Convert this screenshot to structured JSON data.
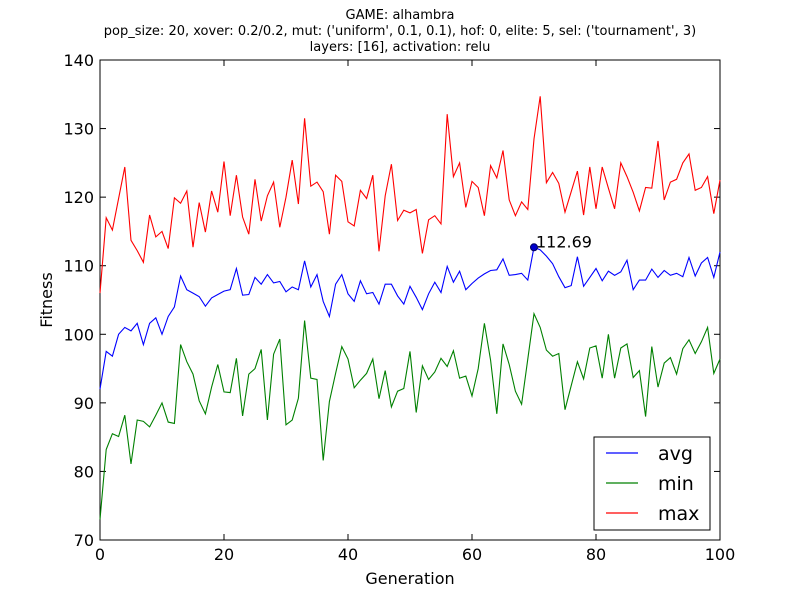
{
  "title_lines": [
    "GAME: alhambra",
    "pop_size: 20, xover: 0.2/0.2, mut: ('uniform', 0.1, 0.1), hof: 0, elite: 5, sel: ('tournament', 3)",
    "layers: [16], activation: relu"
  ],
  "chart_data": {
    "type": "line",
    "title": "GAME: alhambra\npop_size: 20, xover: 0.2/0.2, mut: ('uniform', 0.1, 0.1), hof: 0, elite: 5, sel: ('tournament', 3)\nlayers: [16], activation: relu",
    "xlabel": "Generation",
    "ylabel": "Fitness",
    "xlim": [
      0,
      100
    ],
    "ylim": [
      70,
      140
    ],
    "xticks": [
      0,
      20,
      40,
      60,
      80,
      100
    ],
    "yticks": [
      70,
      80,
      90,
      100,
      110,
      120,
      130,
      140
    ],
    "grid": false,
    "legend_position": "lower-right",
    "x": [
      0,
      1,
      2,
      3,
      4,
      5,
      6,
      7,
      8,
      9,
      10,
      11,
      12,
      13,
      14,
      15,
      16,
      17,
      18,
      19,
      20,
      21,
      22,
      23,
      24,
      25,
      26,
      27,
      28,
      29,
      30,
      31,
      32,
      33,
      34,
      35,
      36,
      37,
      38,
      39,
      40,
      41,
      42,
      43,
      44,
      45,
      46,
      47,
      48,
      49,
      50,
      51,
      52,
      53,
      54,
      55,
      56,
      57,
      58,
      59,
      60,
      61,
      62,
      63,
      64,
      65,
      66,
      67,
      68,
      69,
      70,
      71,
      72,
      73,
      74,
      75,
      76,
      77,
      78,
      79,
      80,
      81,
      82,
      83,
      84,
      85,
      86,
      87,
      88,
      89,
      90,
      91,
      92,
      93,
      94,
      95,
      96,
      97,
      98,
      99,
      100
    ],
    "series": [
      {
        "name": "avg",
        "color": "#0000ff",
        "values": [
          92.0,
          97.5,
          96.8,
          100.0,
          101.0,
          100.5,
          101.6,
          98.5,
          101.6,
          102.4,
          100.0,
          102.6,
          104.0,
          108.5,
          106.5,
          106.0,
          105.5,
          104.1,
          105.3,
          105.8,
          106.3,
          106.5,
          109.6,
          105.7,
          105.8,
          108.3,
          107.3,
          108.7,
          107.5,
          107.7,
          106.2,
          106.9,
          106.5,
          110.7,
          106.9,
          108.7,
          104.8,
          102.6,
          107.3,
          108.7,
          105.9,
          104.8,
          107.8,
          105.9,
          106.1,
          104.4,
          107.3,
          107.3,
          105.6,
          104.4,
          107.0,
          105.4,
          103.6,
          105.9,
          107.6,
          106.1,
          109.9,
          107.6,
          109.2,
          106.5,
          107.4,
          108.2,
          108.8,
          109.3,
          109.4,
          111.0,
          108.6,
          108.7,
          108.9,
          107.9,
          112.7,
          112.3,
          111.4,
          110.3,
          108.4,
          106.8,
          107.1,
          111.3,
          107.0,
          108.3,
          109.6,
          107.8,
          109.2,
          108.6,
          109.1,
          110.8,
          106.5,
          107.9,
          107.9,
          109.5,
          108.3,
          109.3,
          108.6,
          108.9,
          108.4,
          111.2,
          108.5,
          110.4,
          111.2,
          108.3,
          112.0
        ]
      },
      {
        "name": "min",
        "color": "#008000",
        "values": [
          73.0,
          83.2,
          85.5,
          85.1,
          88.2,
          81.1,
          87.5,
          87.3,
          86.5,
          88.2,
          90.0,
          87.2,
          87.0,
          98.5,
          96.0,
          94.2,
          90.3,
          88.4,
          92.3,
          95.6,
          91.6,
          91.5,
          96.5,
          88.1,
          94.2,
          95.0,
          97.8,
          87.5,
          97.1,
          99.3,
          86.8,
          87.5,
          90.7,
          102.0,
          93.6,
          93.4,
          81.6,
          90.2,
          94.3,
          98.2,
          96.4,
          92.2,
          93.3,
          94.3,
          96.4,
          90.6,
          94.7,
          89.4,
          91.7,
          92.1,
          97.5,
          88.6,
          95.4,
          93.4,
          94.5,
          96.5,
          95.3,
          97.6,
          93.6,
          93.9,
          91.0,
          95.0,
          101.6,
          96.2,
          88.4,
          98.6,
          95.6,
          91.7,
          89.8,
          96.4,
          103.0,
          101.0,
          97.7,
          96.8,
          97.2,
          89.0,
          92.5,
          96.0,
          93.5,
          98.0,
          98.3,
          93.6,
          100.0,
          93.6,
          98.0,
          98.6,
          93.7,
          94.7,
          88.0,
          98.2,
          92.3,
          95.8,
          96.6,
          94.2,
          97.9,
          99.2,
          97.2,
          98.9,
          101.0,
          94.3,
          96.4
        ]
      },
      {
        "name": "max",
        "color": "#ff0000",
        "values": [
          106.0,
          117.0,
          115.2,
          119.8,
          124.4,
          113.7,
          112.2,
          110.5,
          117.4,
          114.2,
          115.0,
          112.5,
          119.9,
          119.1,
          120.9,
          112.7,
          119.2,
          114.9,
          120.9,
          117.8,
          125.2,
          117.3,
          123.2,
          117.1,
          114.6,
          122.6,
          116.5,
          120.2,
          122.2,
          115.6,
          120.0,
          125.4,
          119.0,
          131.5,
          121.6,
          122.2,
          120.8,
          114.6,
          123.2,
          122.3,
          116.4,
          115.8,
          121.0,
          119.8,
          123.2,
          112.1,
          120.2,
          124.8,
          116.6,
          118.1,
          117.7,
          118.2,
          111.8,
          116.7,
          117.3,
          116.1,
          132.1,
          123.0,
          125.0,
          118.5,
          122.3,
          121.4,
          117.3,
          124.6,
          122.8,
          126.8,
          119.6,
          117.3,
          119.3,
          118.2,
          128.5,
          134.7,
          122.1,
          123.6,
          122.0,
          117.8,
          120.8,
          123.8,
          117.4,
          124.4,
          118.3,
          124.4,
          121.3,
          118.3,
          125.0,
          123.0,
          120.7,
          118.0,
          121.4,
          121.3,
          128.2,
          119.6,
          122.2,
          122.6,
          125.0,
          126.3,
          121.0,
          121.4,
          123.0,
          117.6,
          122.5
        ]
      }
    ],
    "annotations": [
      {
        "text": "112.69",
        "x": 70,
        "y": 112.69
      }
    ]
  }
}
